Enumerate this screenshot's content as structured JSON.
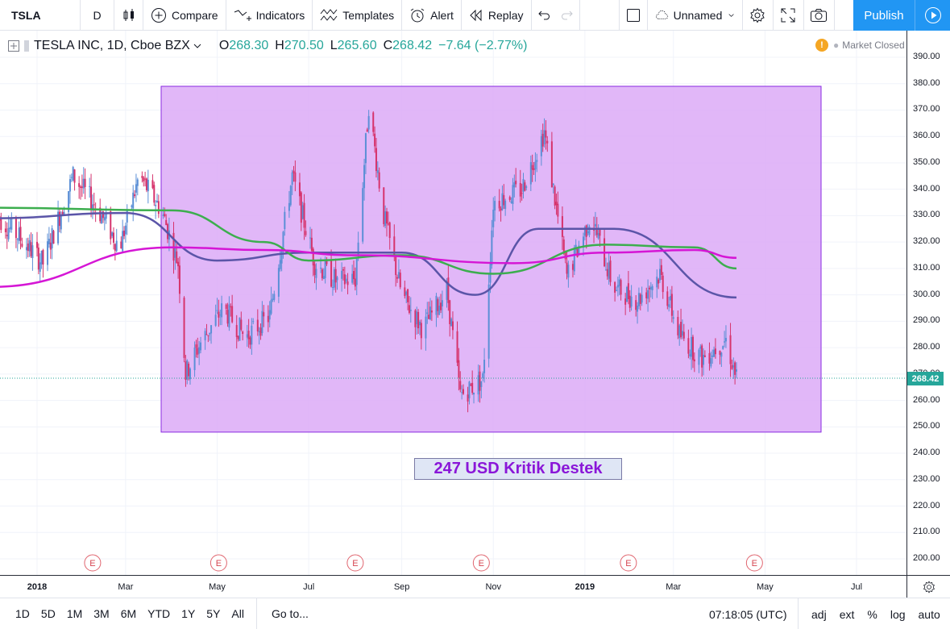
{
  "toolbar": {
    "symbol": "TSLA",
    "interval": "D",
    "compare_label": "Compare",
    "indicators_label": "Indicators",
    "templates_label": "Templates",
    "alert_label": "Alert",
    "replay_label": "Replay",
    "layout_name": "Unnamed",
    "publish_label": "Publish"
  },
  "legend": {
    "title": "TESLA INC, 1D, Cboe BZX",
    "open_label": "O",
    "open": "268.30",
    "high_label": "H",
    "high": "270.50",
    "low_label": "L",
    "low": "265.60",
    "close_label": "C",
    "close": "268.42",
    "change": "−7.64 (−2.77%)",
    "market_status": "Market Closed",
    "status_badge": "!"
  },
  "colors": {
    "up": "#26a69a",
    "down": "#d6336c",
    "candle": "#5b8fd6",
    "ma_fast": "#5b55a8",
    "ma_mid": "#3cae4e",
    "ma_slow": "#d516d5",
    "box_fill": "#dcaaf7",
    "box_border": "#8a2be2",
    "accent": "#2196f3"
  },
  "annotation": {
    "label": "247 USD Kritik Destek"
  },
  "price_scale": {
    "ticks": [
      "390.00",
      "380.00",
      "370.00",
      "360.00",
      "350.00",
      "340.00",
      "330.00",
      "320.00",
      "310.00",
      "300.00",
      "290.00",
      "280.00",
      "270.00",
      "260.00",
      "250.00",
      "240.00",
      "230.00",
      "220.00",
      "210.00",
      "200.00"
    ],
    "last_price": "268.42"
  },
  "time_scale": {
    "ticks": [
      "2018",
      "Mar",
      "May",
      "Jul",
      "Sep",
      "Nov",
      "2019",
      "Mar",
      "May",
      "Jul"
    ]
  },
  "earnings_marker": "E",
  "bottom_bar": {
    "ranges": [
      "1D",
      "5D",
      "1M",
      "3M",
      "6M",
      "YTD",
      "1Y",
      "5Y",
      "All"
    ],
    "goto_label": "Go to...",
    "clock": "07:18:05 (UTC)",
    "options": [
      "adj",
      "ext",
      "%",
      "log",
      "auto"
    ]
  },
  "chart_data": {
    "type": "candlestick",
    "symbol": "TSLA",
    "ylim": [
      195,
      393
    ],
    "x_range": [
      "2017-12",
      "2019-07"
    ],
    "rectangle": {
      "price_top": 379,
      "price_bottom": 248
    },
    "close_path": [
      [
        "2017-12-05",
        330
      ],
      [
        "2017-12-20",
        322
      ],
      [
        "2018-01-05",
        312
      ],
      [
        "2018-01-25",
        345
      ],
      [
        "2018-02-10",
        333
      ],
      [
        "2018-02-25",
        318
      ],
      [
        "2018-03-10",
        345
      ],
      [
        "2018-03-25",
        332
      ],
      [
        "2018-04-05",
        312
      ],
      [
        "2018-04-10",
        270
      ],
      [
        "2018-04-20",
        282
      ],
      [
        "2018-05-05",
        295
      ],
      [
        "2018-05-20",
        284
      ],
      [
        "2018-06-05",
        292
      ],
      [
        "2018-06-20",
        345
      ],
      [
        "2018-07-05",
        312
      ],
      [
        "2018-07-20",
        305
      ],
      [
        "2018-08-01",
        306
      ],
      [
        "2018-08-10",
        372
      ],
      [
        "2018-08-20",
        330
      ],
      [
        "2018-09-01",
        300
      ],
      [
        "2018-09-15",
        287
      ],
      [
        "2018-10-01",
        302
      ],
      [
        "2018-10-10",
        262
      ],
      [
        "2018-10-25",
        268
      ],
      [
        "2018-11-01",
        335
      ],
      [
        "2018-11-20",
        340
      ],
      [
        "2018-12-05",
        362
      ],
      [
        "2018-12-20",
        307
      ],
      [
        "2019-01-05",
        330
      ],
      [
        "2019-01-20",
        303
      ],
      [
        "2019-02-05",
        298
      ],
      [
        "2019-02-20",
        308
      ],
      [
        "2019-03-05",
        285
      ],
      [
        "2019-03-20",
        276
      ],
      [
        "2019-04-05",
        283
      ],
      [
        "2019-04-12",
        268.42
      ]
    ],
    "moving_averages": [
      {
        "points": [
          [
            "2017-12-01",
            329
          ],
          [
            "2018-03-01",
            331
          ],
          [
            "2018-05-01",
            313
          ],
          [
            "2018-07-01",
            316
          ],
          [
            "2018-09-01",
            316
          ],
          [
            "2018-10-20",
            300
          ],
          [
            "2018-12-01",
            325
          ],
          [
            "2019-01-20",
            325
          ],
          [
            "2019-04-12",
            299
          ]
        ]
      },
      {
        "points": [
          [
            "2017-12-01",
            333
          ],
          [
            "2018-04-01",
            332
          ],
          [
            "2018-06-01",
            320
          ],
          [
            "2018-07-01",
            313
          ],
          [
            "2018-09-01",
            315
          ],
          [
            "2018-11-01",
            308
          ],
          [
            "2019-01-15",
            319
          ],
          [
            "2019-03-15",
            318
          ],
          [
            "2019-04-12",
            310
          ]
        ]
      },
      {
        "points": [
          [
            "2017-12-01",
            303
          ],
          [
            "2018-04-01",
            318
          ],
          [
            "2018-06-01",
            317
          ],
          [
            "2018-08-01",
            315
          ],
          [
            "2018-11-15",
            312
          ],
          [
            "2019-01-15",
            316
          ],
          [
            "2019-03-15",
            317
          ],
          [
            "2019-04-12",
            314
          ]
        ]
      }
    ],
    "earnings_dates": [
      "2018-02-07",
      "2018-05-02",
      "2018-08-01",
      "2018-10-24",
      "2019-01-30",
      "2019-04-24"
    ]
  }
}
